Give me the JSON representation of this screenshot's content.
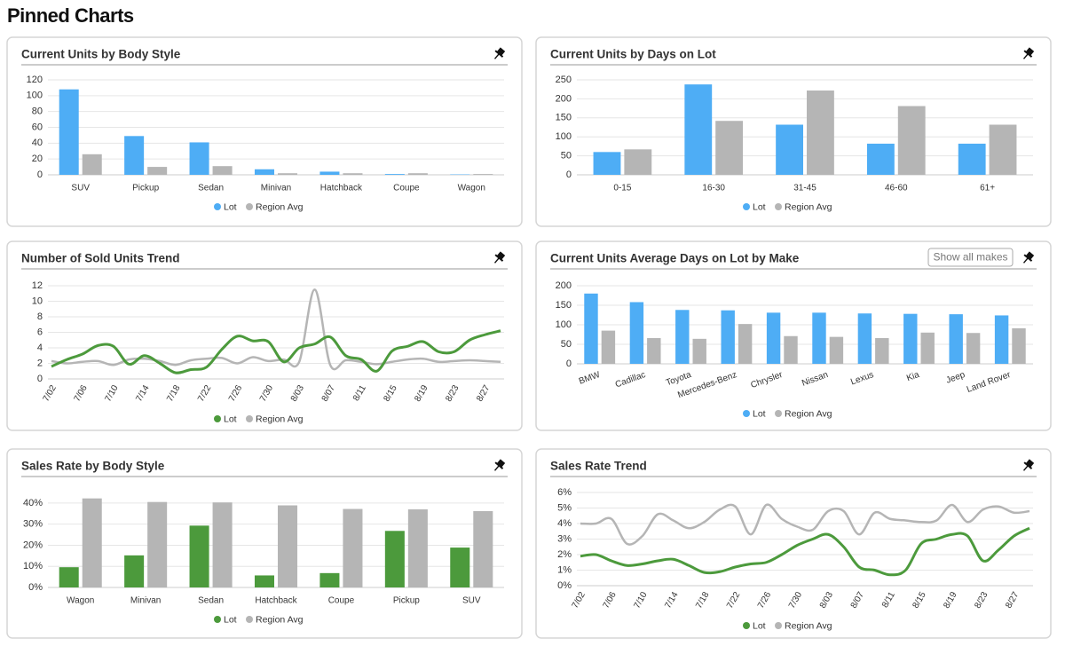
{
  "title": "Pinned Charts",
  "chart_data": [
    {
      "type": "bar",
      "title": "Current Units by Body Style",
      "categories": [
        "SUV",
        "Pickup",
        "Sedan",
        "Minivan",
        "Hatchback",
        "Coupe",
        "Wagon"
      ],
      "series": [
        {
          "name": "Lot",
          "color": "#4eadf5",
          "values": [
            108,
            49,
            41,
            7,
            4,
            1,
            0.5
          ]
        },
        {
          "name": "Region Avg",
          "color": "#b5b5b5",
          "values": [
            26,
            10,
            11,
            2,
            2,
            2,
            1
          ]
        }
      ],
      "ylim": [
        0,
        120
      ],
      "yticks": [
        0,
        20,
        40,
        60,
        80,
        100,
        120
      ],
      "grid": true,
      "legend": "bottom"
    },
    {
      "type": "bar",
      "title": "Current Units by Days on Lot",
      "categories": [
        "0-15",
        "16-30",
        "31-45",
        "46-60",
        "61+"
      ],
      "series": [
        {
          "name": "Lot",
          "color": "#4eadf5",
          "values": [
            60,
            238,
            132,
            82,
            82
          ]
        },
        {
          "name": "Region Avg",
          "color": "#b5b5b5",
          "values": [
            67,
            142,
            222,
            181,
            132
          ]
        }
      ],
      "ylim": [
        0,
        250
      ],
      "yticks": [
        0,
        50,
        100,
        150,
        200,
        250
      ],
      "grid": true,
      "legend": "bottom"
    },
    {
      "type": "line",
      "title": "Number of Sold Units Trend",
      "categories": [
        "7/02",
        null,
        "7/06",
        null,
        "7/10",
        null,
        "7/14",
        null,
        "7/18",
        null,
        "7/22",
        null,
        "7/26",
        null,
        "7/30",
        null,
        "8/03",
        null,
        "8/07",
        null,
        "8/11",
        null,
        "8/15",
        null,
        "8/19",
        null,
        "8/23",
        null,
        "8/27",
        null
      ],
      "series": [
        {
          "name": "Lot",
          "color": "#4c9a3c",
          "values": [
            1.6,
            2.5,
            3.2,
            4.3,
            4.2,
            1.9,
            3.0,
            2.0,
            0.8,
            1.2,
            1.5,
            3.8,
            5.5,
            4.9,
            4.8,
            2.2,
            4.0,
            4.5,
            5.4,
            3.0,
            2.5,
            1.0,
            3.6,
            4.2,
            4.8,
            3.5,
            3.5,
            5.0,
            5.7,
            6.2
          ]
        },
        {
          "name": "Region Avg",
          "color": "#b5b5b5",
          "values": [
            2.3,
            2.0,
            2.2,
            2.3,
            1.8,
            2.5,
            2.6,
            2.3,
            1.8,
            2.4,
            2.6,
            2.7,
            2.0,
            2.8,
            2.3,
            2.5,
            2.2,
            11.5,
            1.8,
            2.4,
            2.2,
            1.9,
            2.2,
            2.5,
            2.6,
            2.2,
            2.3,
            2.4,
            2.3,
            2.2
          ]
        }
      ],
      "ylim": [
        0,
        12
      ],
      "yticks": [
        0,
        2,
        4,
        6,
        8,
        10,
        12
      ],
      "grid": true,
      "legend": "bottom"
    },
    {
      "type": "bar",
      "title": "Current Units Average Days on Lot by Make",
      "button": "Show all makes",
      "categories": [
        "BMW",
        "Cadillac",
        "Toyota",
        "Mercedes-Benz",
        "Chrysler",
        "Nissan",
        "Lexus",
        "Kia",
        "Jeep",
        "Land Rover"
      ],
      "series": [
        {
          "name": "Lot",
          "color": "#4eadf5",
          "values": [
            180,
            158,
            138,
            137,
            131,
            131,
            129,
            128,
            127,
            124
          ]
        },
        {
          "name": "Region Avg",
          "color": "#b5b5b5",
          "values": [
            85,
            66,
            64,
            102,
            71,
            69,
            66,
            80,
            79,
            91
          ]
        }
      ],
      "ylim": [
        0,
        200
      ],
      "yticks": [
        0,
        50,
        100,
        150,
        200
      ],
      "grid": true,
      "legend": "bottom"
    },
    {
      "type": "bar",
      "title": "Sales Rate by Body Style",
      "categories": [
        "Wagon",
        "Minivan",
        "Sedan",
        "Hatchback",
        "Coupe",
        "Pickup",
        "SUV"
      ],
      "series": [
        {
          "name": "Lot",
          "color": "#4c9a3c",
          "values": [
            9.6,
            15.2,
            29.3,
            5.7,
            6.8,
            26.8,
            18.9
          ]
        },
        {
          "name": "Region Avg",
          "color": "#b5b5b5",
          "values": [
            42.2,
            40.5,
            40.3,
            38.9,
            37.2,
            37.0,
            36.2
          ]
        }
      ],
      "ylim": [
        0,
        45
      ],
      "yticks": [
        {
          "value": 0,
          "label": "0%"
        },
        {
          "value": 10,
          "label": "10%"
        },
        {
          "value": 20,
          "label": "20%"
        },
        {
          "value": 30,
          "label": "30%"
        },
        {
          "value": 40,
          "label": "40%"
        }
      ],
      "grid": true,
      "legend": "bottom"
    },
    {
      "type": "line",
      "title": "Sales Rate Trend",
      "categories": [
        "7/02",
        null,
        "7/06",
        null,
        "7/10",
        null,
        "7/14",
        null,
        "7/18",
        null,
        "7/22",
        null,
        "7/26",
        null,
        "7/30",
        null,
        "8/03",
        null,
        "8/07",
        null,
        "8/11",
        null,
        "8/15",
        null,
        "8/19",
        null,
        "8/23",
        null,
        "8/27",
        null
      ],
      "series": [
        {
          "name": "Lot",
          "color": "#4c9a3c",
          "values": [
            1.9,
            2.0,
            1.6,
            1.3,
            1.4,
            1.6,
            1.7,
            1.3,
            0.85,
            0.9,
            1.2,
            1.4,
            1.5,
            2.0,
            2.6,
            3.0,
            3.3,
            2.5,
            1.2,
            1.0,
            0.7,
            1.0,
            2.7,
            3.0,
            3.3,
            3.2,
            1.6,
            2.3,
            3.2,
            3.7
          ]
        },
        {
          "name": "Region Avg",
          "color": "#b5b5b5",
          "values": [
            4.0,
            4.0,
            4.3,
            2.7,
            3.2,
            4.6,
            4.2,
            3.7,
            4.1,
            4.9,
            5.1,
            3.3,
            5.2,
            4.3,
            3.8,
            3.6,
            4.8,
            4.8,
            3.3,
            4.7,
            4.3,
            4.2,
            4.1,
            4.2,
            5.2,
            4.1,
            4.9,
            5.1,
            4.7,
            4.8
          ]
        }
      ],
      "ylim": [
        0,
        6
      ],
      "yticks": [
        {
          "value": 0,
          "label": "0%"
        },
        {
          "value": 1,
          "label": "1%"
        },
        {
          "value": 2,
          "label": "2%"
        },
        {
          "value": 3,
          "label": "3%"
        },
        {
          "value": 4,
          "label": "4%"
        },
        {
          "value": 5,
          "label": "5%"
        },
        {
          "value": 6,
          "label": "6%"
        }
      ],
      "grid": true,
      "legend": "bottom"
    }
  ]
}
